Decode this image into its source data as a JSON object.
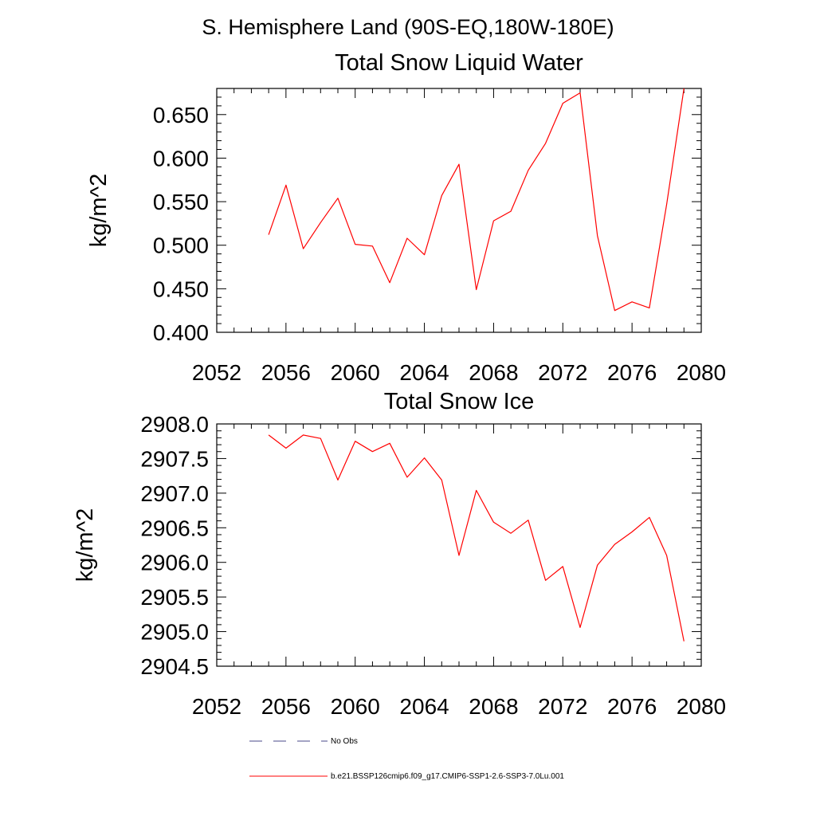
{
  "figure": {
    "suptitle": "S. Hemisphere Land (90S-EQ,180W-180E)"
  },
  "chart_data": [
    {
      "type": "line",
      "title": "Total Snow Liquid Water",
      "xlabel": "",
      "ylabel": "kg/m^2",
      "xlim": [
        2052,
        2080
      ],
      "ylim": [
        0.4,
        0.68
      ],
      "xticks": [
        2052,
        2056,
        2060,
        2064,
        2068,
        2072,
        2076,
        2080
      ],
      "xtick_labels": [
        "2052",
        "2056",
        "2060",
        "2064",
        "2068",
        "2072",
        "2076",
        "2080"
      ],
      "yticks": [
        0.4,
        0.45,
        0.5,
        0.55,
        0.6,
        0.65
      ],
      "ytick_labels": [
        "0.400",
        "0.450",
        "0.500",
        "0.550",
        "0.600",
        "0.650"
      ],
      "x": [
        2055,
        2056,
        2057,
        2058,
        2059,
        2060,
        2061,
        2062,
        2063,
        2064,
        2065,
        2066,
        2067,
        2068,
        2069,
        2070,
        2071,
        2072,
        2073,
        2074,
        2075,
        2076,
        2077,
        2078,
        2079
      ],
      "series": [
        {
          "name": "b.e21.BSSP126cmip6.f09_g17.CMIP6-SSP1-2.6-SSP3-7.0Lu.001",
          "color": "#ff0000",
          "values": [
            0.512,
            0.569,
            0.496,
            0.526,
            0.554,
            0.501,
            0.499,
            0.457,
            0.508,
            0.489,
            0.557,
            0.593,
            0.449,
            0.528,
            0.539,
            0.586,
            0.617,
            0.663,
            0.675,
            0.511,
            0.425,
            0.435,
            0.428,
            0.547,
            0.68
          ]
        }
      ]
    },
    {
      "type": "line",
      "title": "Total Snow Ice",
      "xlabel": "",
      "ylabel": "kg/m^2",
      "xlim": [
        2052,
        2080
      ],
      "ylim": [
        2904.5,
        2908.0
      ],
      "xticks": [
        2052,
        2056,
        2060,
        2064,
        2068,
        2072,
        2076,
        2080
      ],
      "xtick_labels": [
        "2052",
        "2056",
        "2060",
        "2064",
        "2068",
        "2072",
        "2076",
        "2080"
      ],
      "yticks": [
        2904.5,
        2905.0,
        2905.5,
        2906.0,
        2906.5,
        2907.0,
        2907.5,
        2908.0
      ],
      "ytick_labels": [
        "2904.5",
        "2905.0",
        "2905.5",
        "2906.0",
        "2906.5",
        "2907.0",
        "2907.5",
        "2908.0"
      ],
      "x": [
        2055,
        2056,
        2057,
        2058,
        2059,
        2060,
        2061,
        2062,
        2063,
        2064,
        2065,
        2066,
        2067,
        2068,
        2069,
        2070,
        2071,
        2072,
        2073,
        2074,
        2075,
        2076,
        2077,
        2078,
        2079
      ],
      "series": [
        {
          "name": "b.e21.BSSP126cmip6.f09_g17.CMIP6-SSP1-2.6-SSP3-7.0Lu.001",
          "color": "#ff0000",
          "values": [
            2907.84,
            2907.65,
            2907.84,
            2907.79,
            2907.19,
            2907.75,
            2907.6,
            2907.72,
            2907.23,
            2907.51,
            2907.19,
            2906.1,
            2907.04,
            2906.58,
            2906.42,
            2906.61,
            2905.74,
            2905.94,
            2905.06,
            2905.96,
            2906.26,
            2906.44,
            2906.65,
            2906.1,
            2904.86
          ]
        }
      ]
    }
  ],
  "legend": {
    "entries": [
      {
        "label": "No Obs",
        "color": "#4a4a8a",
        "style": "dashed"
      },
      {
        "label": "b.e21.BSSP126cmip6.f09_g17.CMIP6-SSP1-2.6-SSP3-7.0Lu.001",
        "color": "#ff0000",
        "style": "solid"
      }
    ]
  }
}
